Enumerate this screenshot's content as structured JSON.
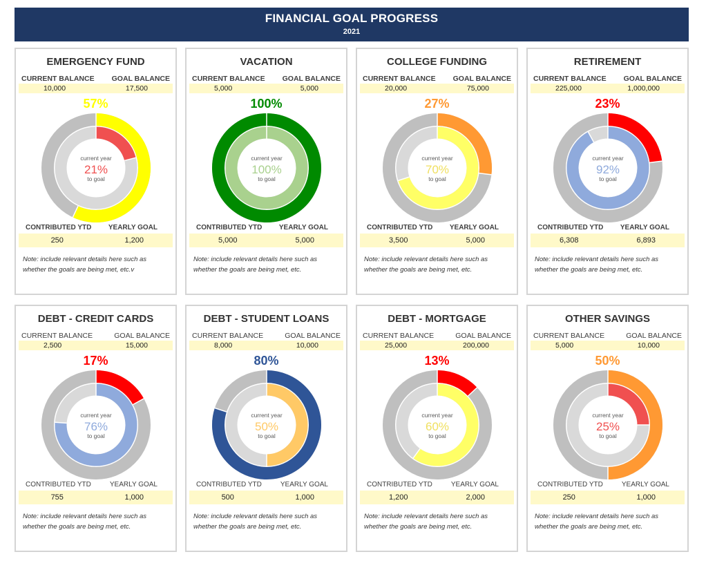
{
  "header": {
    "title": "FINANCIAL GOAL PROGRESS",
    "subtitle": "2021"
  },
  "labels": {
    "current_balance": "CURRENT BALANCE",
    "goal_balance": "GOAL BALANCE",
    "contributed_ytd": "CONTRIBUTED YTD",
    "yearly_goal": "YEARLY GOAL",
    "center_top": "current year",
    "center_bottom": "to goal"
  },
  "cards": [
    {
      "title": "EMERGENCY FUND",
      "current_balance": "10,000",
      "goal_balance": "17,500",
      "overall_pct_text": "57%",
      "overall_fraction": 0.57,
      "overall_color": "#ffff00",
      "year_pct_text": "21%",
      "year_fraction": 0.21,
      "year_color": "#f05050",
      "contributed_ytd": "250",
      "yearly_goal": "1,200",
      "note": "Note: include relevant details here such as whether the goals are being met, etc.v"
    },
    {
      "title": "VACATION",
      "current_balance": "5,000",
      "goal_balance": "5,000",
      "overall_pct_text": "100%",
      "overall_fraction": 1.0,
      "overall_color": "#008a00",
      "year_pct_text": "100%",
      "year_fraction": 1.0,
      "year_color": "#a9d18e",
      "contributed_ytd": "5,000",
      "yearly_goal": "5,000",
      "note": "Note: include relevant details here such as whether the goals are being met, etc."
    },
    {
      "title": "COLLEGE FUNDING",
      "current_balance": "20,000",
      "goal_balance": "75,000",
      "overall_pct_text": "27%",
      "overall_fraction": 0.27,
      "overall_color": "#ff9933",
      "year_pct_text": "70%",
      "year_fraction": 0.7,
      "year_color": "#ffff66",
      "contributed_ytd": "3,500",
      "yearly_goal": "5,000",
      "note": "Note: include relevant details here such as whether the goals are being met, etc."
    },
    {
      "title": "RETIREMENT",
      "current_balance": "225,000",
      "goal_balance": "1,000,000",
      "overall_pct_text": "23%",
      "overall_fraction": 0.23,
      "overall_color": "#ff0000",
      "year_pct_text": "92%",
      "year_fraction": 0.92,
      "year_color": "#8faadc",
      "contributed_ytd": "6,308",
      "yearly_goal": "6,893",
      "note": "Note: include relevant details here such as whether the goals are being met, etc."
    },
    {
      "title": "DEBT - CREDIT CARDS",
      "current_balance": "2,500",
      "goal_balance": "15,000",
      "overall_pct_text": "17%",
      "overall_fraction": 0.17,
      "overall_color": "#ff0000",
      "year_pct_text": "76%",
      "year_fraction": 0.76,
      "year_color": "#8faadc",
      "contributed_ytd": "755",
      "yearly_goal": "1,000",
      "note": "Note: include relevant details here such as whether the goals are being met, etc."
    },
    {
      "title": "DEBT - STUDENT LOANS",
      "current_balance": "8,000",
      "goal_balance": "10,000",
      "overall_pct_text": "80%",
      "overall_fraction": 0.8,
      "overall_color": "#2f5597",
      "year_pct_text": "50%",
      "year_fraction": 0.5,
      "year_color": "#ffc966",
      "contributed_ytd": "500",
      "yearly_goal": "1,000",
      "note": "Note: include relevant details here such as whether the goals are being met, etc."
    },
    {
      "title": "DEBT - MORTGAGE",
      "current_balance": "25,000",
      "goal_balance": "200,000",
      "overall_pct_text": "13%",
      "overall_fraction": 0.13,
      "overall_color": "#ff0000",
      "year_pct_text": "60%",
      "year_fraction": 0.6,
      "year_color": "#ffff66",
      "contributed_ytd": "1,200",
      "yearly_goal": "2,000",
      "note": "Note: include relevant details here such as whether the goals are being met, etc."
    },
    {
      "title": "OTHER SAVINGS",
      "current_balance": "5,000",
      "goal_balance": "10,000",
      "overall_pct_text": "50%",
      "overall_fraction": 0.5,
      "overall_color": "#ff9933",
      "year_pct_text": "25%",
      "year_fraction": 0.25,
      "year_color": "#f05050",
      "contributed_ytd": "250",
      "yearly_goal": "1,000",
      "note": "Note: include relevant details here such as whether the goals are being met, etc."
    }
  ],
  "colors": {
    "header_bg": "#1f3864",
    "outer_track": "#bfbfbf",
    "inner_track": "#d9d9d9",
    "value_bg": "#fff9c9"
  }
}
